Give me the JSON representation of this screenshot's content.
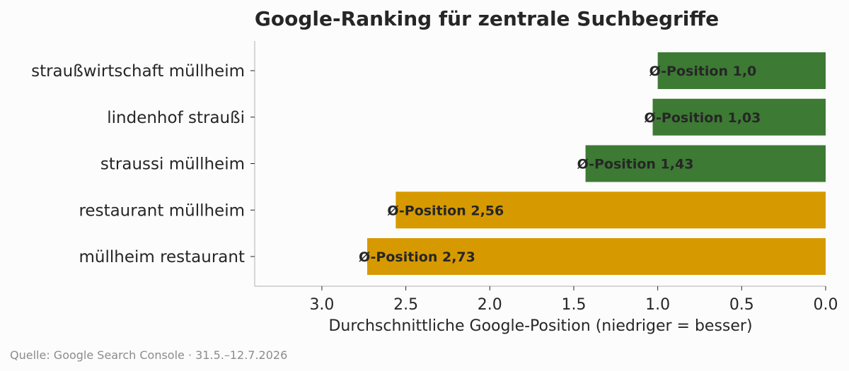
{
  "chart_data": {
    "type": "bar",
    "orientation": "horizontal",
    "title": "Google-Ranking für zentrale Suchbegriffe",
    "xlabel": "Durchschnittliche Google-Position (niedriger = besser)",
    "ylabel": "",
    "xlim": [
      3.4,
      0.0
    ],
    "x_reversed": true,
    "x_ticks": [
      3.0,
      2.5,
      2.0,
      1.5,
      1.0,
      0.5,
      0.0
    ],
    "x_tick_labels": [
      "3.0",
      "2.5",
      "2.0",
      "1.5",
      "1.0",
      "0.5",
      "0.0"
    ],
    "grid": false,
    "categories": [
      "straußwirtschaft müllheim",
      "lindenhof straußi",
      "straussi müllheim",
      "restaurant müllheim",
      "müllheim restaurant"
    ],
    "values": [
      1.0,
      1.03,
      1.43,
      2.56,
      2.73
    ],
    "data_labels": [
      "Ø-Position 1,0",
      "Ø-Position 1,03",
      "Ø-Position 1,43",
      "Ø-Position 2,56",
      "Ø-Position 2,73"
    ],
    "bar_colors": [
      "#3d7a34",
      "#3d7a34",
      "#3d7a34",
      "#d69a00",
      "#d69a00"
    ],
    "source": "Quelle: Google Search Console · 31.5.–12.7.2026"
  }
}
